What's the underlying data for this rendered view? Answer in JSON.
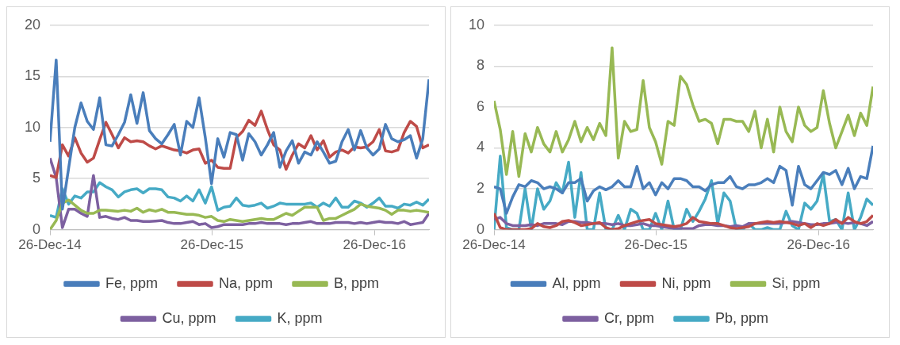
{
  "chart_data": [
    {
      "type": "line",
      "grid": "y",
      "legend": "bottom",
      "xlim": [
        "2014-12-26",
        "2017-04-28"
      ],
      "xticks": [
        {
          "value": "2014-12-26",
          "label": "26-Dec-14"
        },
        {
          "value": "2015-12-26",
          "label": "26-Dec-15"
        },
        {
          "value": "2016-12-26",
          "label": "26-Dec-16"
        }
      ],
      "ylim": [
        0,
        20
      ],
      "yticks": [
        0,
        5,
        10,
        15,
        20
      ],
      "x": [
        "2014-12-26",
        "2015-01-09",
        "2015-01-23",
        "2015-02-06",
        "2015-02-20",
        "2015-03-06",
        "2015-03-20",
        "2015-04-03",
        "2015-04-17",
        "2015-05-01",
        "2015-05-15",
        "2015-05-29",
        "2015-06-12",
        "2015-06-26",
        "2015-07-10",
        "2015-07-24",
        "2015-08-07",
        "2015-08-21",
        "2015-09-04",
        "2015-09-18",
        "2015-10-02",
        "2015-10-16",
        "2015-10-30",
        "2015-11-13",
        "2015-11-27",
        "2015-12-11",
        "2015-12-25",
        "2016-01-08",
        "2016-01-22",
        "2016-02-05",
        "2016-02-19",
        "2016-03-04",
        "2016-03-18",
        "2016-04-01",
        "2016-04-15",
        "2016-04-29",
        "2016-05-13",
        "2016-05-27",
        "2016-06-10",
        "2016-06-24",
        "2016-07-08",
        "2016-07-22",
        "2016-08-05",
        "2016-08-19",
        "2016-09-02",
        "2016-09-16",
        "2016-09-30",
        "2016-10-14",
        "2016-10-28",
        "2016-11-11",
        "2016-11-25",
        "2016-12-09",
        "2016-12-23",
        "2017-01-06",
        "2017-01-20",
        "2017-02-03",
        "2017-02-17",
        "2017-03-03",
        "2017-03-17",
        "2017-03-31",
        "2017-04-14",
        "2017-04-28"
      ],
      "series": [
        {
          "name": "Fe, ppm",
          "color": "#4a7ebb",
          "values": [
            8.6,
            16.6,
            2,
            6,
            10,
            12.4,
            10.6,
            9.8,
            12.9,
            8.3,
            8.2,
            9.3,
            10.5,
            13.2,
            10.4,
            13.4,
            9.7,
            8.9,
            8.4,
            9.3,
            10.3,
            7.3,
            10.6,
            10,
            12.9,
            9,
            4.5,
            8.9,
            7.1,
            9.5,
            9.3,
            6.8,
            9.4,
            8.6,
            7.3,
            8.3,
            9.5,
            6.1,
            7.7,
            8.7,
            6.5,
            7.6,
            7.3,
            8.6,
            7.6,
            6.5,
            6.7,
            8.6,
            9.8,
            7.8,
            9.7,
            8,
            7.3,
            7.9,
            10.3,
            8.9,
            8.6,
            8.8,
            9.2,
            7,
            8.9,
            14.7
          ]
        },
        {
          "name": "Na, ppm",
          "color": "#be4b48",
          "values": [
            5.3,
            5.1,
            8.3,
            7.2,
            9,
            7.5,
            6.6,
            7,
            8.8,
            10.5,
            9.3,
            8,
            9,
            8.6,
            8.7,
            8.6,
            8.2,
            7.9,
            8.2,
            8,
            7.8,
            7.7,
            7.5,
            7.8,
            7.9,
            6.5,
            6.8,
            6.1,
            6,
            6,
            9,
            9.6,
            10.7,
            10.2,
            11.6,
            9.8,
            8.3,
            7.8,
            5.9,
            7.3,
            8.4,
            8,
            9.2,
            7.8,
            8.7,
            7.1,
            7.6,
            7.8,
            7.5,
            8.1,
            8,
            8.1,
            8.6,
            9.8,
            7.7,
            7.6,
            7.8,
            9.5,
            10.6,
            10.1,
            8,
            8.3
          ]
        },
        {
          "name": "B, ppm",
          "color": "#98b954",
          "values": [
            0,
            0.9,
            2.6,
            2.9,
            2.4,
            1.9,
            1.6,
            1.6,
            1.9,
            1.9,
            1.85,
            1.8,
            1.9,
            1.8,
            2.1,
            1.7,
            1.95,
            1.8,
            2,
            1.7,
            1.7,
            1.6,
            1.5,
            1.5,
            1.4,
            1.2,
            1.3,
            0.9,
            0.8,
            1,
            0.9,
            0.8,
            0.9,
            1,
            1.1,
            1,
            1,
            1.3,
            1.6,
            1.4,
            1.8,
            2.2,
            2.2,
            2.2,
            0.9,
            1.1,
            1.1,
            1.4,
            1.7,
            2,
            2.5,
            2.3,
            2.2,
            2.1,
            1.9,
            1.5,
            1.9,
            1.9,
            1.8,
            1.9,
            1.8,
            1.7
          ]
        },
        {
          "name": "Cu, ppm",
          "color": "#7d60a0",
          "values": [
            7,
            5.1,
            0.2,
            2,
            2,
            1.6,
            1.3,
            5.3,
            1.2,
            1.3,
            1.1,
            1,
            1.2,
            0.9,
            0.9,
            0.8,
            0.8,
            0.85,
            0.9,
            0.7,
            0.6,
            0.6,
            0.7,
            0.8,
            0.5,
            0.6,
            0.2,
            0.3,
            0.5,
            0.5,
            0.5,
            0.5,
            0.6,
            0.6,
            0.7,
            0.6,
            0.6,
            0.6,
            0.5,
            0.6,
            0.6,
            0.7,
            0.8,
            0.6,
            0.6,
            0.6,
            0.7,
            0.7,
            0.7,
            0.6,
            0.7,
            0.6,
            0.7,
            0.8,
            0.7,
            0.7,
            0.6,
            0.8,
            0.5,
            0.6,
            0.7,
            1.6
          ]
        },
        {
          "name": "K, ppm",
          "color": "#46aac5",
          "values": [
            1.4,
            1.2,
            4,
            2.5,
            3.3,
            3.1,
            3.7,
            3.7,
            4.6,
            4.2,
            3.9,
            3.2,
            3.7,
            3.9,
            4,
            3.6,
            4,
            4,
            3.9,
            3.2,
            3.1,
            2.8,
            3.3,
            2.8,
            3.9,
            2.6,
            4.2,
            1.9,
            2.2,
            2.3,
            3.1,
            2.4,
            2.3,
            2.4,
            2.6,
            2.1,
            2.3,
            2.6,
            2.5,
            2.5,
            2.5,
            2.5,
            2.6,
            2.2,
            2.6,
            2.3,
            3.1,
            2.2,
            2.2,
            2.8,
            2.6,
            2.2,
            2.6,
            3.1,
            2.3,
            2.3,
            2.1,
            2.5,
            2.4,
            2.7,
            2.4,
            3
          ]
        }
      ]
    },
    {
      "type": "line",
      "grid": "y",
      "legend": "bottom",
      "xlim": [
        "2014-12-26",
        "2017-04-28"
      ],
      "xticks": [
        {
          "value": "2014-12-26",
          "label": "26-Dec-14"
        },
        {
          "value": "2015-12-26",
          "label": "26-Dec-15"
        },
        {
          "value": "2016-12-26",
          "label": "26-Dec-16"
        }
      ],
      "ylim": [
        0,
        10
      ],
      "yticks": [
        0,
        2,
        4,
        6,
        8,
        10
      ],
      "x": [
        "2014-12-26",
        "2015-01-09",
        "2015-01-23",
        "2015-02-06",
        "2015-02-20",
        "2015-03-06",
        "2015-03-20",
        "2015-04-03",
        "2015-04-17",
        "2015-05-01",
        "2015-05-15",
        "2015-05-29",
        "2015-06-12",
        "2015-06-26",
        "2015-07-10",
        "2015-07-24",
        "2015-08-07",
        "2015-08-21",
        "2015-09-04",
        "2015-09-18",
        "2015-10-02",
        "2015-10-16",
        "2015-10-30",
        "2015-11-13",
        "2015-11-27",
        "2015-12-11",
        "2015-12-25",
        "2016-01-08",
        "2016-01-22",
        "2016-02-05",
        "2016-02-19",
        "2016-03-04",
        "2016-03-18",
        "2016-04-01",
        "2016-04-15",
        "2016-04-29",
        "2016-05-13",
        "2016-05-27",
        "2016-06-10",
        "2016-06-24",
        "2016-07-08",
        "2016-07-22",
        "2016-08-05",
        "2016-08-19",
        "2016-09-02",
        "2016-09-16",
        "2016-09-30",
        "2016-10-14",
        "2016-10-28",
        "2016-11-11",
        "2016-11-25",
        "2016-12-09",
        "2016-12-23",
        "2017-01-06",
        "2017-01-20",
        "2017-02-03",
        "2017-02-17",
        "2017-03-03",
        "2017-03-17",
        "2017-03-31",
        "2017-04-14",
        "2017-04-28"
      ],
      "series": [
        {
          "name": "Al, ppm",
          "color": "#4a7ebb",
          "values": [
            2.1,
            2,
            0.8,
            1.6,
            2.2,
            2.1,
            2.4,
            2.3,
            2,
            2.1,
            2,
            1.8,
            2.3,
            2.3,
            2.5,
            1.4,
            1.9,
            2.1,
            1.95,
            2.1,
            2.4,
            2.1,
            2.1,
            3.1,
            2,
            2.3,
            1.7,
            2.3,
            2,
            2.5,
            2.5,
            2.4,
            2.1,
            2.1,
            1.9,
            2.2,
            2.3,
            2.3,
            2.6,
            2.1,
            2,
            2.2,
            2.2,
            2.3,
            2.5,
            2.3,
            3.1,
            2.9,
            1.2,
            3.1,
            2.2,
            2,
            2.4,
            2.8,
            2.7,
            2.9,
            2.2,
            3,
            2,
            2.6,
            2.5,
            4.1
          ]
        },
        {
          "name": "Ni, ppm",
          "color": "#be4b48",
          "values": [
            0.8,
            0.1,
            0,
            0,
            0,
            0,
            0.05,
            0.3,
            0.15,
            0.1,
            0.2,
            0.4,
            0.45,
            0.35,
            0.2,
            0.25,
            0.3,
            0.35,
            0.1,
            0,
            0.05,
            0.2,
            0.3,
            0.4,
            0.45,
            0.5,
            0.3,
            0.25,
            0.2,
            0.15,
            0.2,
            0.3,
            0.6,
            0.4,
            0.35,
            0.3,
            0.3,
            0.2,
            0.1,
            0.05,
            0.1,
            0.15,
            0.3,
            0.35,
            0.4,
            0.35,
            0.4,
            0.35,
            0.3,
            0.2,
            0.3,
            0.1,
            0.3,
            0.2,
            0.3,
            0.5,
            0.3,
            0.6,
            0.4,
            0.3,
            0.4,
            0.7
          ]
        },
        {
          "name": "Si, ppm",
          "color": "#98b954",
          "values": [
            6.3,
            4.9,
            2.7,
            4.8,
            2.6,
            4.7,
            3.8,
            5,
            4.2,
            3.8,
            4.8,
            3.8,
            4.4,
            5.3,
            4.3,
            5,
            4.4,
            5.2,
            4.6,
            8.9,
            3.5,
            5.3,
            4.8,
            4.9,
            7.3,
            5,
            4.3,
            3.2,
            5.3,
            5.1,
            7.5,
            7.1,
            6.1,
            5.3,
            5.4,
            5.2,
            4.2,
            5.4,
            5.4,
            5.3,
            5.3,
            4.8,
            5.8,
            4,
            5.4,
            3.8,
            6,
            4.8,
            4.3,
            6,
            5.1,
            4.8,
            5,
            6.8,
            5.2,
            4,
            4.8,
            5.6,
            4.6,
            5.7,
            5.1,
            7
          ]
        },
        {
          "name": "Cr, ppm",
          "color": "#7d60a0",
          "values": [
            0.5,
            0.6,
            0.3,
            0.2,
            0.2,
            0.2,
            0.25,
            0.2,
            0.3,
            0.3,
            0.3,
            0.25,
            0.4,
            0.4,
            0.35,
            0.35,
            0.3,
            0.3,
            0.3,
            0.25,
            0.3,
            0.2,
            0.2,
            0.25,
            0.3,
            0.2,
            0.2,
            0.15,
            0.1,
            0.05,
            0.05,
            0.05,
            0.05,
            0.2,
            0.25,
            0.25,
            0.2,
            0.2,
            0.15,
            0.2,
            0.15,
            0.3,
            0.3,
            0.3,
            0.3,
            0.3,
            0.3,
            0.35,
            0.4,
            0.35,
            0.3,
            0.25,
            0.25,
            0.3,
            0.3,
            0.35,
            0.35,
            0.3,
            0.35,
            0.3,
            0.2,
            0.4
          ]
        },
        {
          "name": "Pb, ppm",
          "color": "#46aac5",
          "values": [
            0,
            3.6,
            0.1,
            0,
            0,
            2,
            0,
            2,
            1,
            1.4,
            2.3,
            1.8,
            3.3,
            0.6,
            2.8,
            0,
            0,
            1.8,
            0,
            0,
            0.7,
            0,
            1,
            0.8,
            0,
            0,
            0.8,
            0,
            1.4,
            0,
            0,
            1,
            0.4,
            0.9,
            1.5,
            2.4,
            0.3,
            1.8,
            1.4,
            0,
            0,
            0.3,
            0,
            0,
            0.1,
            0,
            0,
            0.9,
            0.2,
            0,
            1.3,
            1,
            1.4,
            2.7,
            0.4,
            0.5,
            0,
            1.8,
            0,
            0.6,
            1.5,
            1.2
          ]
        }
      ]
    }
  ]
}
